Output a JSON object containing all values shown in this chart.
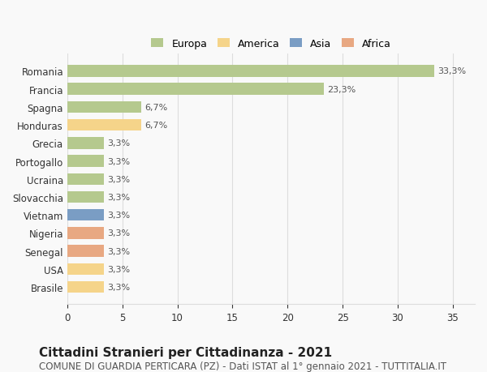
{
  "countries": [
    "Romania",
    "Francia",
    "Spagna",
    "Honduras",
    "Grecia",
    "Portogallo",
    "Ucraina",
    "Slovacchia",
    "Vietnam",
    "Nigeria",
    "Senegal",
    "USA",
    "Brasile"
  ],
  "values": [
    33.3,
    23.3,
    6.7,
    6.7,
    3.3,
    3.3,
    3.3,
    3.3,
    3.3,
    3.3,
    3.3,
    3.3,
    3.3
  ],
  "labels": [
    "33,3%",
    "23,3%",
    "6,7%",
    "6,7%",
    "3,3%",
    "3,3%",
    "3,3%",
    "3,3%",
    "3,3%",
    "3,3%",
    "3,3%",
    "3,3%",
    "3,3%"
  ],
  "colors": [
    "#b5c98e",
    "#b5c98e",
    "#b5c98e",
    "#f5d48a",
    "#b5c98e",
    "#b5c98e",
    "#b5c98e",
    "#b5c98e",
    "#7a9dc4",
    "#e8a882",
    "#e8a882",
    "#f5d48a",
    "#f5d48a"
  ],
  "legend_labels": [
    "Europa",
    "America",
    "Asia",
    "Africa"
  ],
  "legend_colors": [
    "#b5c98e",
    "#f5d48a",
    "#7a9dc4",
    "#e8a882"
  ],
  "xlim": [
    0,
    37
  ],
  "xticks": [
    0,
    5,
    10,
    15,
    20,
    25,
    30,
    35
  ],
  "title": "Cittadini Stranieri per Cittadinanza - 2021",
  "subtitle": "COMUNE DI GUARDIA PERTICARA (PZ) - Dati ISTAT al 1° gennaio 2021 - TUTTITALIA.IT",
  "background_color": "#f9f9f9",
  "grid_color": "#dddddd",
  "bar_height": 0.65,
  "title_fontsize": 11,
  "subtitle_fontsize": 8.5,
  "label_fontsize": 8,
  "tick_fontsize": 8.5,
  "legend_fontsize": 9
}
